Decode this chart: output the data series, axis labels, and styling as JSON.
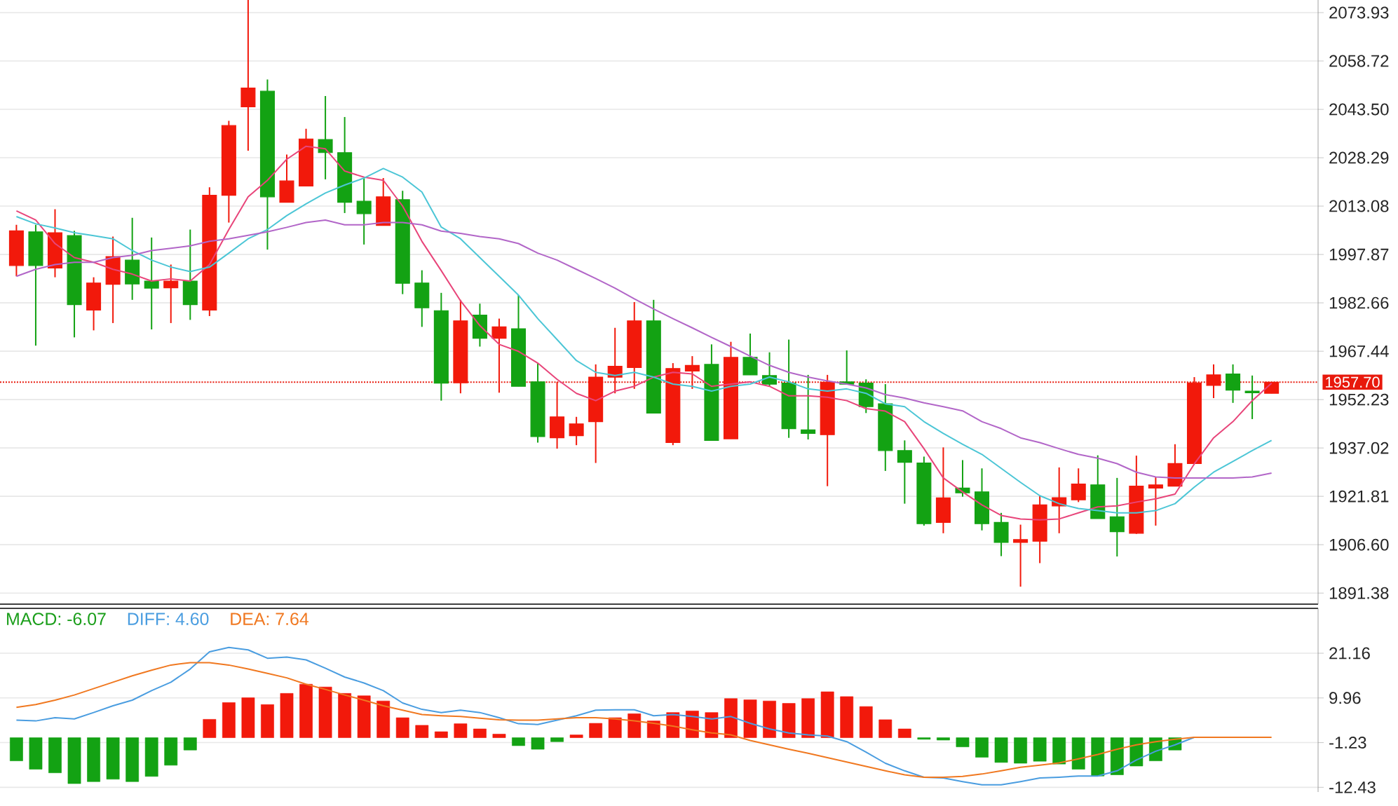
{
  "chart_data": [
    {
      "type": "candlestick",
      "categories": [
        null,
        null,
        null,
        null,
        null,
        null,
        null,
        null,
        null,
        null,
        null,
        null,
        null,
        null,
        null,
        null,
        null,
        null,
        null,
        null,
        null,
        null,
        null,
        null,
        null,
        null,
        null,
        null,
        null,
        null,
        null,
        null,
        null,
        null,
        null,
        null,
        null,
        null,
        null,
        null,
        null,
        null,
        null,
        null,
        null,
        null,
        null,
        null,
        null,
        null,
        null,
        null,
        null,
        null,
        null,
        null,
        null,
        null,
        null,
        null,
        null,
        null,
        null,
        null,
        null,
        null
      ],
      "ohlc": [
        [
          1994.4,
          2007.2,
          1991.0,
          2005.3
        ],
        [
          2005.0,
          2007.2,
          1969.2,
          1994.4
        ],
        [
          1993.6,
          2012.1,
          1990.7,
          2004.7
        ],
        [
          2003.8,
          2005.3,
          1971.8,
          1982.1
        ],
        [
          1980.4,
          1990.7,
          1974.0,
          1988.9
        ],
        [
          1988.5,
          2003.5,
          1976.3,
          1997.2
        ],
        [
          1996.1,
          2009.4,
          1983.6,
          1988.6
        ],
        [
          1989.5,
          2003.2,
          1974.3,
          1987.3
        ],
        [
          1987.4,
          1994.7,
          1976.3,
          1989.5
        ],
        [
          1989.5,
          2005.7,
          1977.3,
          1982.1
        ],
        [
          1980.4,
          2019.0,
          1978.5,
          2016.5
        ],
        [
          2016.5,
          2039.9,
          2007.9,
          2038.4
        ],
        [
          2044.3,
          2077.9,
          2030.5,
          2050.2
        ],
        [
          2049.2,
          2052.9,
          1999.4,
          2016.0
        ],
        [
          2014.3,
          2029.3,
          2014.3,
          2021.0
        ],
        [
          2019.4,
          2037.4,
          2019.4,
          2034.2
        ],
        [
          2034.0,
          2047.7,
          2021.5,
          2029.9
        ],
        [
          2029.9,
          2041.1,
          2010.9,
          2014.3
        ],
        [
          2014.6,
          2021.9,
          2001.0,
          2010.7
        ],
        [
          2007.0,
          2021.9,
          2007.0,
          2016.0
        ],
        [
          2015.1,
          2017.9,
          1985.4,
          1988.8
        ],
        [
          1988.9,
          1992.9,
          1975.1,
          1981.1
        ],
        [
          1980.2,
          1985.8,
          1951.9,
          1957.4
        ],
        [
          1957.5,
          1983.6,
          1954.2,
          1977.0
        ],
        [
          1978.8,
          1982.4,
          1968.9,
          1971.5
        ],
        [
          1971.5,
          1977.7,
          1954.4,
          1975.1
        ],
        [
          1974.5,
          1985.1,
          1956.4,
          1956.4
        ],
        [
          1957.8,
          1963.7,
          1938.7,
          1940.6
        ],
        [
          1940.2,
          1957.8,
          1936.8,
          1946.8
        ],
        [
          1940.9,
          1946.8,
          1937.9,
          1944.6
        ],
        [
          1945.3,
          1963.3,
          1932.3,
          1959.3
        ],
        [
          1959.3,
          1974.8,
          1954.2,
          1962.7
        ],
        [
          1962.3,
          1982.9,
          1955.6,
          1977.0
        ],
        [
          1977.0,
          1983.6,
          1948.0,
          1948.0
        ],
        [
          1938.7,
          1963.7,
          1937.9,
          1962.0
        ],
        [
          1961.2,
          1965.9,
          1955.6,
          1963.0
        ],
        [
          1963.3,
          1969.6,
          1939.4,
          1939.4
        ],
        [
          1939.9,
          1970.4,
          1939.9,
          1965.5
        ],
        [
          1965.5,
          1973.0,
          1960.0,
          1960.0
        ],
        [
          1959.8,
          1967.1,
          1956.4,
          1957.1
        ],
        [
          1957.4,
          1971.1,
          1940.2,
          1943.1
        ],
        [
          1942.7,
          1960.0,
          1939.7,
          1941.6
        ],
        [
          1941.2,
          1960.0,
          1925.0,
          1957.7
        ],
        [
          1957.8,
          1967.7,
          1957.1,
          1957.1
        ],
        [
          1957.4,
          1958.6,
          1948.0,
          1950.0
        ],
        [
          1950.9,
          1957.1,
          1929.8,
          1936.2
        ],
        [
          1936.2,
          1939.4,
          1919.5,
          1932.5
        ],
        [
          1932.3,
          1934.3,
          1912.6,
          1913.2
        ],
        [
          1913.6,
          1937.2,
          1910.2,
          1921.3
        ],
        [
          1924.4,
          1933.2,
          1921.7,
          1922.9
        ],
        [
          1923.2,
          1930.6,
          1911.1,
          1913.2
        ],
        [
          1913.6,
          1916.6,
          1903.0,
          1907.3
        ],
        [
          1907.3,
          1912.9,
          1893.4,
          1908.2
        ],
        [
          1907.7,
          1922.0,
          1900.8,
          1919.1
        ],
        [
          1918.8,
          1930.9,
          1910.2,
          1921.4
        ],
        [
          1920.7,
          1930.6,
          1920.0,
          1925.7
        ],
        [
          1925.4,
          1934.7,
          1914.8,
          1914.8
        ],
        [
          1915.4,
          1927.6,
          1902.9,
          1910.7
        ],
        [
          1910.2,
          1934.6,
          1910.0,
          1925.0
        ],
        [
          1924.4,
          1927.9,
          1912.6,
          1925.4
        ],
        [
          1925.0,
          1938.2,
          1925.0,
          1932.1
        ],
        [
          1932.1,
          1959.3,
          1932.1,
          1957.5
        ],
        [
          1956.7,
          1963.3,
          1952.7,
          1960.0
        ],
        [
          1960.3,
          1963.3,
          1951.2,
          1955.2
        ],
        [
          1954.9,
          1959.8,
          1946.1,
          1954.4
        ],
        [
          1954.2,
          1957.7,
          1954.2,
          1957.7
        ]
      ],
      "colors": [
        "#f2190b",
        "#13a213",
        "#f2190b",
        "#13a213",
        "#f2190b",
        "#f2190b",
        "#13a213",
        "#13a213",
        "#f2190b",
        "#13a213",
        "#f2190b",
        "#f2190b",
        "#f2190b",
        "#13a213",
        "#f2190b",
        "#f2190b",
        "#13a213",
        "#13a213",
        "#13a213",
        "#f2190b",
        "#13a213",
        "#13a213",
        "#13a213",
        "#f2190b",
        "#13a213",
        "#f2190b",
        "#13a213",
        "#13a213",
        "#f2190b",
        "#f2190b",
        "#f2190b",
        "#f2190b",
        "#f2190b",
        "#13a213",
        "#f2190b",
        "#f2190b",
        "#13a213",
        "#f2190b",
        "#13a213",
        "#13a213",
        "#13a213",
        "#13a213",
        "#f2190b",
        "#13a213",
        "#13a213",
        "#13a213",
        "#13a213",
        "#13a213",
        "#f2190b",
        "#13a213",
        "#13a213",
        "#13a213",
        "#f2190b",
        "#f2190b",
        "#f2190b",
        "#f2190b",
        "#13a213",
        "#13a213",
        "#f2190b",
        "#f2190b",
        "#f2190b",
        "#f2190b",
        "#f2190b",
        "#13a213",
        "#13a213",
        "#f2190b"
      ],
      "series": [
        {
          "type": "line",
          "color": "#e8457a",
          "values": [
            2011.6,
            2008.7,
            2001.3,
            1996.9,
            1995.4,
            1993.2,
            1991.7,
            1989.5,
            1990.2,
            1989.5,
            1994.7,
            2005.7,
            2016.0,
            2021.2,
            2027.8,
            2031.9,
            2031.1,
            2024.1,
            2022.2,
            2021.2,
            2013.1,
            2002.0,
            1992.8,
            1983.3,
            1975.5,
            1969.6,
            1967.4,
            1963.7,
            1958.6,
            1954.2,
            1951.9,
            1954.9,
            1956.4,
            1959.3,
            1960.8,
            1960.3,
            1956.4,
            1957.1,
            1957.8,
            1956.4,
            1953.4,
            1953.4,
            1953.0,
            1951.9,
            1949.4,
            1948.6,
            1945.3,
            1936.8,
            1927.6,
            1923.2,
            1919.1,
            1915.8,
            1914.7,
            1914.4,
            1914.7,
            1916.6,
            1918.5,
            1918.8,
            1920.0,
            1921.0,
            1922.5,
            1932.0,
            1940.2,
            1945.3,
            1951.9,
            1957.4
          ]
        },
        {
          "type": "line",
          "color": "#4cc6d6",
          "values": [
            2009.8,
            2007.5,
            2006.2,
            2004.7,
            2003.8,
            2002.8,
            1999.1,
            1996.1,
            1993.9,
            1992.5,
            1993.9,
            1998.3,
            2002.8,
            2005.7,
            2010.1,
            2013.8,
            2017.2,
            2019.7,
            2021.9,
            2024.9,
            2022.2,
            2017.5,
            2006.5,
            2002.8,
            1996.9,
            1991.0,
            1985.1,
            1977.7,
            1971.1,
            1964.5,
            1960.8,
            1959.8,
            1960.8,
            1959.3,
            1957.1,
            1956.4,
            1954.9,
            1956.4,
            1957.1,
            1959.3,
            1957.8,
            1955.6,
            1954.9,
            1955.6,
            1954.2,
            1950.9,
            1950.0,
            1945.3,
            1941.6,
            1938.2,
            1935.0,
            1930.6,
            1926.2,
            1922.0,
            1919.5,
            1918.0,
            1917.3,
            1916.6,
            1916.6,
            1917.3,
            1919.5,
            1924.7,
            1929.4,
            1932.8,
            1936.2,
            1939.4
          ]
        },
        {
          "type": "line",
          "color": "#b266c8",
          "values": [
            1991.0,
            1993.2,
            1994.7,
            1995.4,
            1995.4,
            1996.9,
            1997.6,
            1999.1,
            1999.8,
            2000.6,
            2002.0,
            2002.8,
            2003.9,
            2005.0,
            2006.4,
            2007.9,
            2008.7,
            2007.2,
            2007.2,
            2007.9,
            2007.9,
            2007.2,
            2005.2,
            2004.5,
            2003.5,
            2002.8,
            2001.3,
            1998.3,
            1996.1,
            1993.2,
            1990.3,
            1987.3,
            1983.9,
            1980.7,
            1977.7,
            1974.8,
            1971.8,
            1968.9,
            1965.9,
            1963.0,
            1960.8,
            1959.3,
            1958.1,
            1957.1,
            1955.9,
            1953.8,
            1952.7,
            1951.2,
            1950.0,
            1948.7,
            1945.3,
            1943.1,
            1940.2,
            1938.7,
            1936.8,
            1935.0,
            1933.8,
            1932.1,
            1929.4,
            1927.9,
            1927.6,
            1927.6,
            1927.6,
            1927.6,
            1927.9,
            1929.1
          ]
        }
      ],
      "ylim": [
        1887.9,
        2077.9
      ],
      "yticks": [
        2073.93,
        2058.72,
        {
          "value": 2043.5,
          "label": "2043.50"
        },
        2028.29,
        2013.08,
        1997.87,
        1982.66,
        1967.44,
        1952.23,
        1937.02,
        1921.81,
        {
          "value": 1906.6,
          "label": "1906.60"
        },
        1891.38
      ],
      "ref_lines": [
        {
          "axis": "y",
          "value": 1957.7,
          "label": "1957.70",
          "color": "#e8190c",
          "line_style": "dotted"
        }
      ],
      "grid": "y",
      "tick_labels": "y"
    },
    {
      "type": "bar",
      "categories": [
        null,
        null,
        null,
        null,
        null,
        null,
        null,
        null,
        null,
        null,
        null,
        null,
        null,
        null,
        null,
        null,
        null,
        null,
        null,
        null,
        null,
        null,
        null,
        null,
        null,
        null,
        null,
        null,
        null,
        null,
        null,
        null,
        null,
        null,
        null,
        null,
        null,
        null,
        null,
        null,
        null,
        null,
        null,
        null,
        null,
        null,
        null,
        null,
        null,
        null,
        null,
        null,
        null,
        null,
        null,
        null,
        null,
        null,
        null,
        null,
        null,
        null,
        null,
        null,
        null,
        null
      ],
      "series": [
        {
          "name": "MACD: -6.07",
          "color": "#1a9e1a",
          "colors": [
            "#13a213",
            "#13a213",
            "#13a213",
            "#13a213",
            "#13a213",
            "#13a213",
            "#13a213",
            "#13a213",
            "#13a213",
            "#13a213",
            "#f2190b",
            "#f2190b",
            "#f2190b",
            "#f2190b",
            "#f2190b",
            "#f2190b",
            "#f2190b",
            "#f2190b",
            "#f2190b",
            "#f2190b",
            "#f2190b",
            "#f2190b",
            "#f2190b",
            "#f2190b",
            "#f2190b",
            "#f2190b",
            "#13a213",
            "#13a213",
            "#13a213",
            "#f2190b",
            "#f2190b",
            "#f2190b",
            "#f2190b",
            "#f2190b",
            "#f2190b",
            "#f2190b",
            "#f2190b",
            "#f2190b",
            "#f2190b",
            "#f2190b",
            "#f2190b",
            "#f2190b",
            "#f2190b",
            "#f2190b",
            "#f2190b",
            "#f2190b",
            "#f2190b",
            "#13a213",
            "#13a213",
            "#13a213",
            "#13a213",
            "#13a213",
            "#13a213",
            "#13a213",
            "#13a213",
            "#13a213",
            "#13a213",
            "#13a213",
            "#13a213",
            "#13a213",
            "#13a213",
            "#13a213",
            "#13a213",
            "#13a213",
            "#13a213",
            "#13a213"
          ],
          "values": [
            -5.8,
            -7.9,
            -8.8,
            -11.5,
            -11.0,
            -10.4,
            -11.0,
            -9.7,
            -6.9,
            -3.1,
            4.6,
            8.8,
            10.0,
            8.3,
            11.1,
            13.4,
            12.7,
            11.1,
            10.5,
            9.2,
            5.0,
            3.1,
            1.5,
            3.5,
            2.2,
            0.9,
            -2.0,
            -2.9,
            -1.0,
            0.7,
            3.6,
            5.0,
            6.0,
            4.2,
            6.3,
            6.7,
            6.3,
            9.8,
            9.5,
            9.2,
            8.6,
            9.8,
            11.5,
            10.3,
            7.8,
            4.5,
            2.2,
            -0.4,
            -0.6,
            -2.3,
            -4.9,
            -6.2,
            -6.4,
            -5.9,
            -6.6,
            -7.9,
            -9.6,
            -9.3,
            -7.1,
            -5.8,
            -3.1,
            null,
            null,
            null,
            null,
            null
          ]
        },
        {
          "type": "line",
          "name": "DIFF: 4.60",
          "color": "#4a9de0",
          "values": [
            4.4,
            4.2,
            5.0,
            4.7,
            6.3,
            8.0,
            9.4,
            11.8,
            13.9,
            17.2,
            21.5,
            22.6,
            22.0,
            19.9,
            20.2,
            19.5,
            17.4,
            15.2,
            13.7,
            11.8,
            8.7,
            7.1,
            6.3,
            6.9,
            6.3,
            5.0,
            3.5,
            3.3,
            4.4,
            5.5,
            6.9,
            7.0,
            7.0,
            5.5,
            5.8,
            5.3,
            4.7,
            5.3,
            3.6,
            2.2,
            1.2,
            0.7,
            0.4,
            -1.0,
            -3.6,
            -6.4,
            -8.3,
            -9.9,
            -10.1,
            -11.0,
            -11.8,
            -11.8,
            -11.0,
            -10.1,
            -9.9,
            -9.6,
            -9.6,
            -8.3,
            -5.6,
            -3.4,
            -1.8,
            0.1,
            null,
            null,
            null,
            null
          ]
        },
        {
          "type": "line",
          "name": "DEA: 7.64",
          "color": "#f07820",
          "values": [
            7.6,
            8.3,
            9.4,
            10.7,
            12.3,
            13.9,
            15.5,
            16.9,
            18.2,
            18.8,
            18.8,
            18.2,
            17.2,
            16.1,
            15.0,
            13.4,
            12.1,
            10.7,
            9.4,
            8.0,
            6.9,
            5.8,
            5.5,
            5.3,
            4.9,
            4.5,
            4.4,
            4.4,
            4.7,
            5.0,
            5.0,
            4.7,
            4.2,
            3.6,
            2.9,
            2.0,
            1.2,
            0.7,
            -0.7,
            -1.8,
            -2.9,
            -3.9,
            -5.0,
            -6.1,
            -7.2,
            -8.3,
            -9.3,
            -9.9,
            -9.9,
            -9.7,
            -9.1,
            -8.3,
            -7.4,
            -6.9,
            -6.3,
            -5.3,
            -4.2,
            -2.9,
            -1.8,
            -1.0,
            -0.4,
            0.1,
            0.1,
            0.1,
            0.1,
            0.1
          ]
        }
      ],
      "ylim": [
        -13.6,
        32.4
      ],
      "yticks": [
        21.16,
        9.96,
        -1.23,
        -12.43
      ],
      "grid": "y",
      "tick_labels": "y",
      "legend": "top left"
    }
  ]
}
